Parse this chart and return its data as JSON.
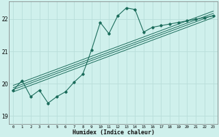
{
  "title": "",
  "xlabel": "Humidex (Indice chaleur)",
  "background_color": "#cff0ec",
  "line_color": "#1a6b5a",
  "grid_color": "#b8ddd9",
  "xlim": [
    -0.5,
    23.5
  ],
  "ylim": [
    18.75,
    22.55
  ],
  "yticks": [
    19,
    20,
    21,
    22
  ],
  "xticks": [
    0,
    1,
    2,
    3,
    4,
    5,
    6,
    7,
    8,
    9,
    10,
    11,
    12,
    13,
    14,
    15,
    16,
    17,
    18,
    19,
    20,
    21,
    22,
    23
  ],
  "main_x": [
    0,
    1,
    2,
    3,
    4,
    5,
    6,
    7,
    8,
    9,
    10,
    11,
    12,
    13,
    14,
    15,
    16,
    17,
    18,
    19,
    20,
    21,
    22,
    23
  ],
  "main_y": [
    19.8,
    20.1,
    19.6,
    19.8,
    19.4,
    19.6,
    19.75,
    20.05,
    20.3,
    21.05,
    21.9,
    21.55,
    22.1,
    22.35,
    22.3,
    21.6,
    21.75,
    21.8,
    21.85,
    21.9,
    21.95,
    22.0,
    22.05,
    22.1
  ],
  "reg_lines": [
    {
      "x": [
        0,
        23
      ],
      "y": [
        19.75,
        22.05
      ]
    },
    {
      "x": [
        0,
        23
      ],
      "y": [
        19.82,
        22.12
      ]
    },
    {
      "x": [
        0,
        23
      ],
      "y": [
        19.88,
        22.18
      ]
    },
    {
      "x": [
        0,
        23
      ],
      "y": [
        19.95,
        22.25
      ]
    }
  ]
}
